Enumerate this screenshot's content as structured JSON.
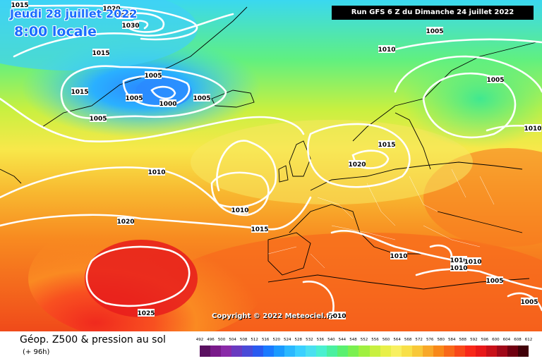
{
  "header": {
    "date": "Jeudi 28 juillet 2022",
    "time": "8:00 locale"
  },
  "run_info": "Run GFS 6 Z du Dimanche 24 juillet 2022",
  "copyright": "Copyright © 2022 Meteociel.fr",
  "footer": {
    "title": "Géop. Z500 & pression au sol",
    "subtitle": "(+ 96h)"
  },
  "legend": {
    "ticks": [
      "492",
      "496",
      "500",
      "504",
      "508",
      "512",
      "516",
      "520",
      "524",
      "528",
      "532",
      "536",
      "540",
      "544",
      "548",
      "552",
      "556",
      "560",
      "564",
      "568",
      "572",
      "576",
      "580",
      "584",
      "588",
      "592",
      "596",
      "600",
      "604",
      "608",
      "612"
    ],
    "colors": [
      "#5a1060",
      "#7a1a8a",
      "#8a2aa8",
      "#6a3ac0",
      "#4a4ad8",
      "#2a5af0",
      "#1a7aff",
      "#1a9aff",
      "#2ab8ff",
      "#3ad0ff",
      "#4ae0f0",
      "#4af0d0",
      "#4af0a0",
      "#5af070",
      "#7af050",
      "#a0f040",
      "#c8f040",
      "#e8f048",
      "#f8f060",
      "#f8e048",
      "#f8c838",
      "#f8a828",
      "#f88818",
      "#f86818",
      "#f84818",
      "#f82818",
      "#e81818",
      "#c81018",
      "#a00818",
      "#700010",
      "#400008"
    ]
  },
  "isobars": [
    {
      "value": "1015",
      "at": [
        [
          28,
          7
        ],
        [
          143,
          75
        ],
        [
          113,
          130
        ],
        [
          548,
          205
        ],
        [
          368,
          325
        ]
      ]
    },
    {
      "value": "1020",
      "at": [
        [
          158,
          12
        ],
        [
          178,
          314
        ],
        [
          506,
          233
        ]
      ]
    },
    {
      "value": "1025",
      "at": [
        [
          177,
          22
        ],
        [
          207,
          444
        ]
      ]
    },
    {
      "value": "1030",
      "at": [
        [
          185,
          36
        ]
      ]
    },
    {
      "value": "1005",
      "at": [
        [
          217,
          107
        ],
        [
          190,
          139
        ],
        [
          139,
          168
        ],
        [
          286,
          139
        ],
        [
          616,
          44
        ],
        [
          702,
          113
        ],
        [
          701,
          398
        ],
        [
          750,
          428
        ]
      ]
    },
    {
      "value": "1000",
      "at": [
        [
          238,
          147
        ]
      ]
    },
    {
      "value": "1010",
      "at": [
        [
          548,
          70
        ],
        [
          222,
          244
        ],
        [
          340,
          298
        ],
        [
          565,
          363
        ],
        [
          650,
          369
        ],
        [
          650,
          380
        ],
        [
          670,
          371
        ],
        [
          478,
          448
        ],
        [
          755,
          182
        ]
      ]
    }
  ]
}
